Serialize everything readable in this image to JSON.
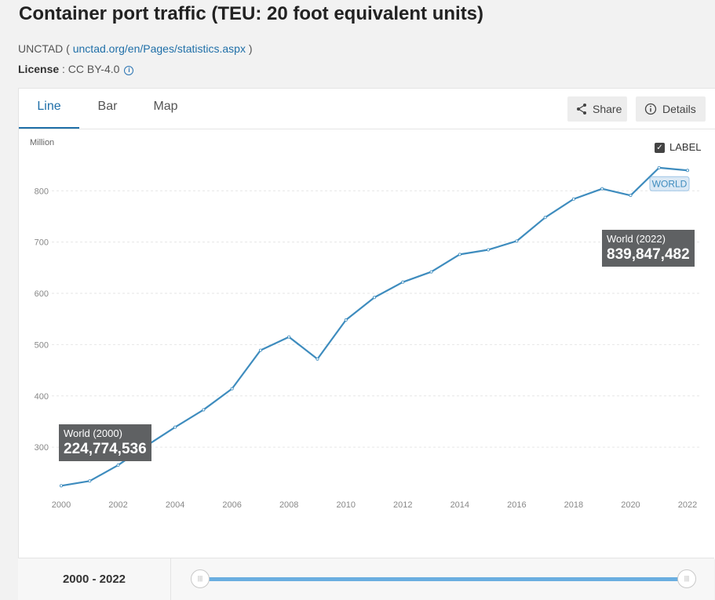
{
  "header": {
    "title": "Container port traffic (TEU: 20 foot equivalent units)",
    "source_prefix": "UNCTAD ( ",
    "source_link": "unctad.org/en/Pages/statistics.aspx",
    "source_suffix": " )",
    "license_label": "License",
    "license_value": " : CC BY-4.0"
  },
  "tabs": [
    {
      "label": "Line",
      "active": true
    },
    {
      "label": "Bar",
      "active": false
    },
    {
      "label": "Map",
      "active": false
    }
  ],
  "actions": {
    "share": "Share",
    "details": "Details"
  },
  "label_toggle": {
    "text": "LABEL",
    "checked": true
  },
  "tooltips": {
    "start": {
      "label": "World (2000)",
      "value": "224,774,536"
    },
    "end": {
      "label": "World (2022)",
      "value": "839,847,482"
    }
  },
  "series_tag": "WORLD",
  "range": {
    "text": "2000 - 2022"
  },
  "colors": {
    "line": "#3e8cbe",
    "accent": "#1f6fa8",
    "tooltip": "#5f6163"
  },
  "chart_data": {
    "type": "line",
    "ylabel": "Million",
    "y_ticks": [
      300,
      400,
      500,
      600,
      700,
      800
    ],
    "x_ticks": [
      2000,
      2002,
      2004,
      2006,
      2008,
      2010,
      2012,
      2014,
      2016,
      2018,
      2020,
      2022
    ],
    "ylim": [
      210,
      880
    ],
    "xlim": [
      2000,
      2022
    ],
    "grid": true,
    "series": [
      {
        "name": "World",
        "x": [
          2000,
          2001,
          2002,
          2003,
          2004,
          2005,
          2006,
          2007,
          2008,
          2009,
          2010,
          2011,
          2012,
          2013,
          2014,
          2015,
          2016,
          2017,
          2018,
          2019,
          2020,
          2021,
          2022
        ],
        "values": [
          224.8,
          234,
          265,
          303,
          339,
          373,
          414,
          489,
          515,
          472,
          548,
          592,
          622,
          642,
          676,
          685,
          702,
          748,
          784,
          804,
          791,
          845,
          839.8
        ]
      }
    ]
  }
}
